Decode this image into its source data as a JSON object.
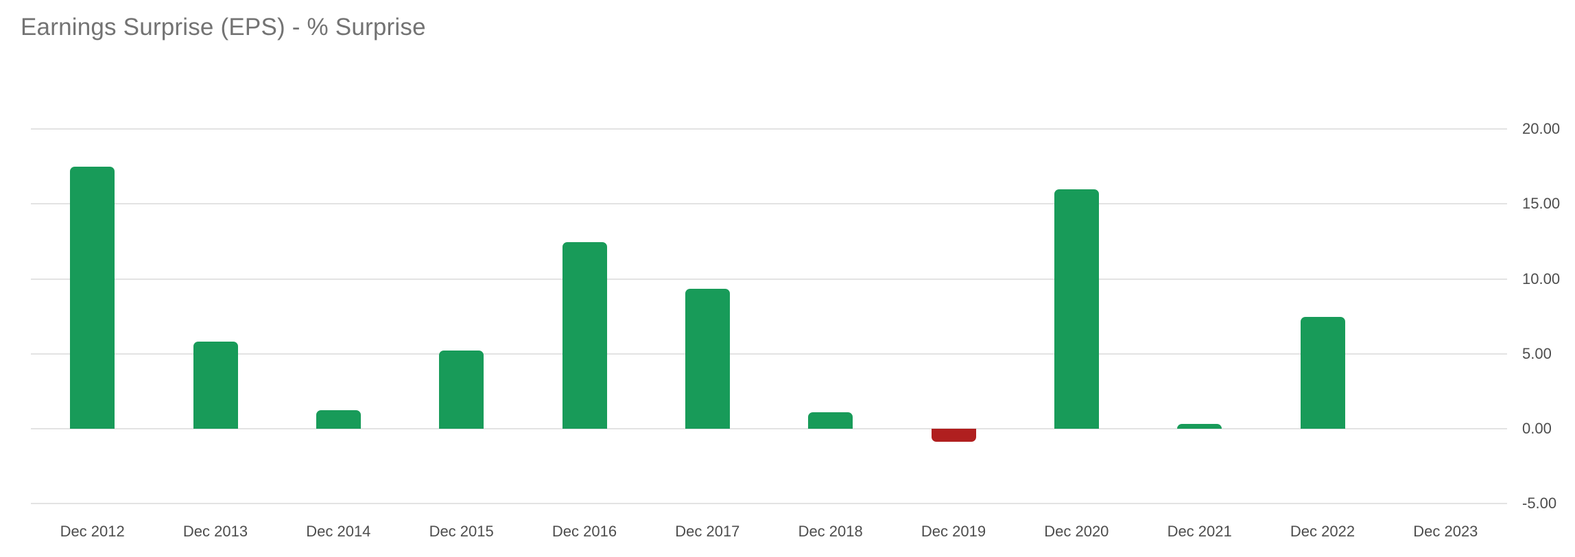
{
  "chart_data": {
    "type": "bar",
    "title": "Earnings Surprise (EPS) - % Surprise",
    "categories": [
      "Dec 2012",
      "Dec 2013",
      "Dec 2014",
      "Dec 2015",
      "Dec 2016",
      "Dec 2017",
      "Dec 2018",
      "Dec 2019",
      "Dec 2020",
      "Dec 2021",
      "Dec 2022",
      "Dec 2023"
    ],
    "values": [
      17.5,
      5.8,
      1.25,
      5.2,
      12.45,
      9.35,
      1.1,
      -0.85,
      15.95,
      0.3,
      7.45,
      null
    ],
    "ylabel": "",
    "xlabel": "",
    "ylim": [
      -5,
      20
    ],
    "yticks": [
      20,
      15,
      10,
      5,
      0,
      -5
    ],
    "ytick_labels": [
      "20.00",
      "15.00",
      "10.00",
      "5.00",
      "0.00",
      "-5.00"
    ],
    "grid": true,
    "legend_position": "none",
    "yaxis_side": "right",
    "positive_color": "#189B59",
    "negative_color": "#B01F1F",
    "gridline_color": "#e3e3e3",
    "title_color": "#737373",
    "axis_label_color": "#4d4d4d"
  }
}
